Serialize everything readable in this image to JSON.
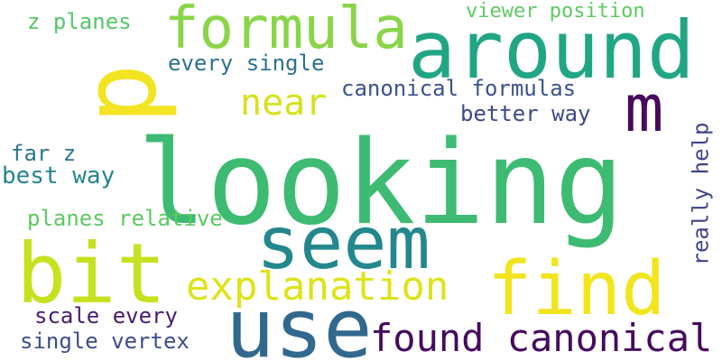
{
  "cloud": {
    "words": [
      {
        "text": "looking",
        "color": "#3ebb72"
      },
      {
        "text": "p",
        "color": "#f2e421"
      },
      {
        "text": "around",
        "color": "#21a685"
      },
      {
        "text": "formula",
        "color": "#89d548"
      },
      {
        "text": "m",
        "color": "#460b5d"
      },
      {
        "text": "seem",
        "color": "#23888e"
      },
      {
        "text": "bit",
        "color": "#c6e11f"
      },
      {
        "text": "use",
        "color": "#31688e"
      },
      {
        "text": "find",
        "color": "#f1e51d"
      },
      {
        "text": "explanation",
        "color": "#dde318"
      },
      {
        "text": "found canonical",
        "color": "#460a5d"
      },
      {
        "text": "near",
        "color": "#d6e21a"
      },
      {
        "text": "canonical formulas",
        "color": "#3b528b"
      },
      {
        "text": "every single",
        "color": "#2c728e"
      },
      {
        "text": "viewer position",
        "color": "#5ec962"
      },
      {
        "text": "z planes",
        "color": "#56c667"
      },
      {
        "text": "better way",
        "color": "#3e4989"
      },
      {
        "text": "really help",
        "color": "#404387"
      },
      {
        "text": "far z",
        "color": "#2b758e"
      },
      {
        "text": "best way",
        "color": "#25858e"
      },
      {
        "text": "planes relative",
        "color": "#5cc863"
      },
      {
        "text": "scale every",
        "color": "#481c6e"
      },
      {
        "text": "single vertex",
        "color": "#3d4d8a"
      }
    ]
  }
}
